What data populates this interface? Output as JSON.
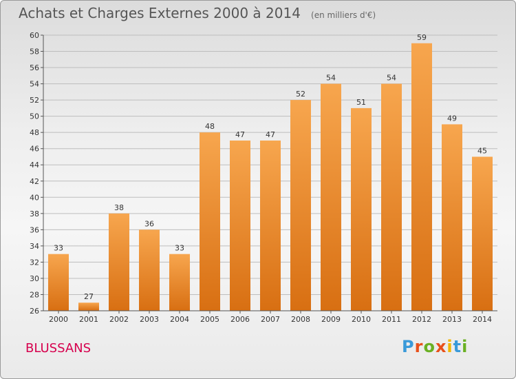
{
  "header": {
    "title": "Achats et Charges Externes 2000 à 2014",
    "subtitle": "(en milliers d'€)"
  },
  "footer": {
    "commune": "BLUSSANS",
    "logo_text": "Proxiti",
    "logo_colors": [
      "#3a9ad9",
      "#e8501a",
      "#6ab023",
      "#e8501a",
      "#f2b600",
      "#3a9ad9",
      "#6ab023"
    ]
  },
  "colors": {
    "bar_light": "#f7a64e",
    "bar_dark": "#d86f12",
    "axis": "#555555",
    "grid": "#bdbdbd"
  },
  "chart_data": {
    "type": "bar",
    "title": "Achats et Charges Externes 2000 à 2014",
    "subtitle": "(en milliers d'€)",
    "xlabel": "",
    "ylabel": "",
    "categories": [
      "2000",
      "2001",
      "2002",
      "2003",
      "2004",
      "2005",
      "2006",
      "2007",
      "2008",
      "2009",
      "2010",
      "2011",
      "2012",
      "2013",
      "2014"
    ],
    "values": [
      33,
      27,
      38,
      36,
      33,
      48,
      47,
      47,
      52,
      54,
      51,
      54,
      59,
      49,
      45
    ],
    "ylim": [
      26,
      60
    ],
    "yticks": [
      26,
      28,
      30,
      32,
      34,
      36,
      38,
      40,
      42,
      44,
      46,
      48,
      50,
      52,
      54,
      56,
      58,
      60
    ],
    "grid": true,
    "legend": "none"
  }
}
